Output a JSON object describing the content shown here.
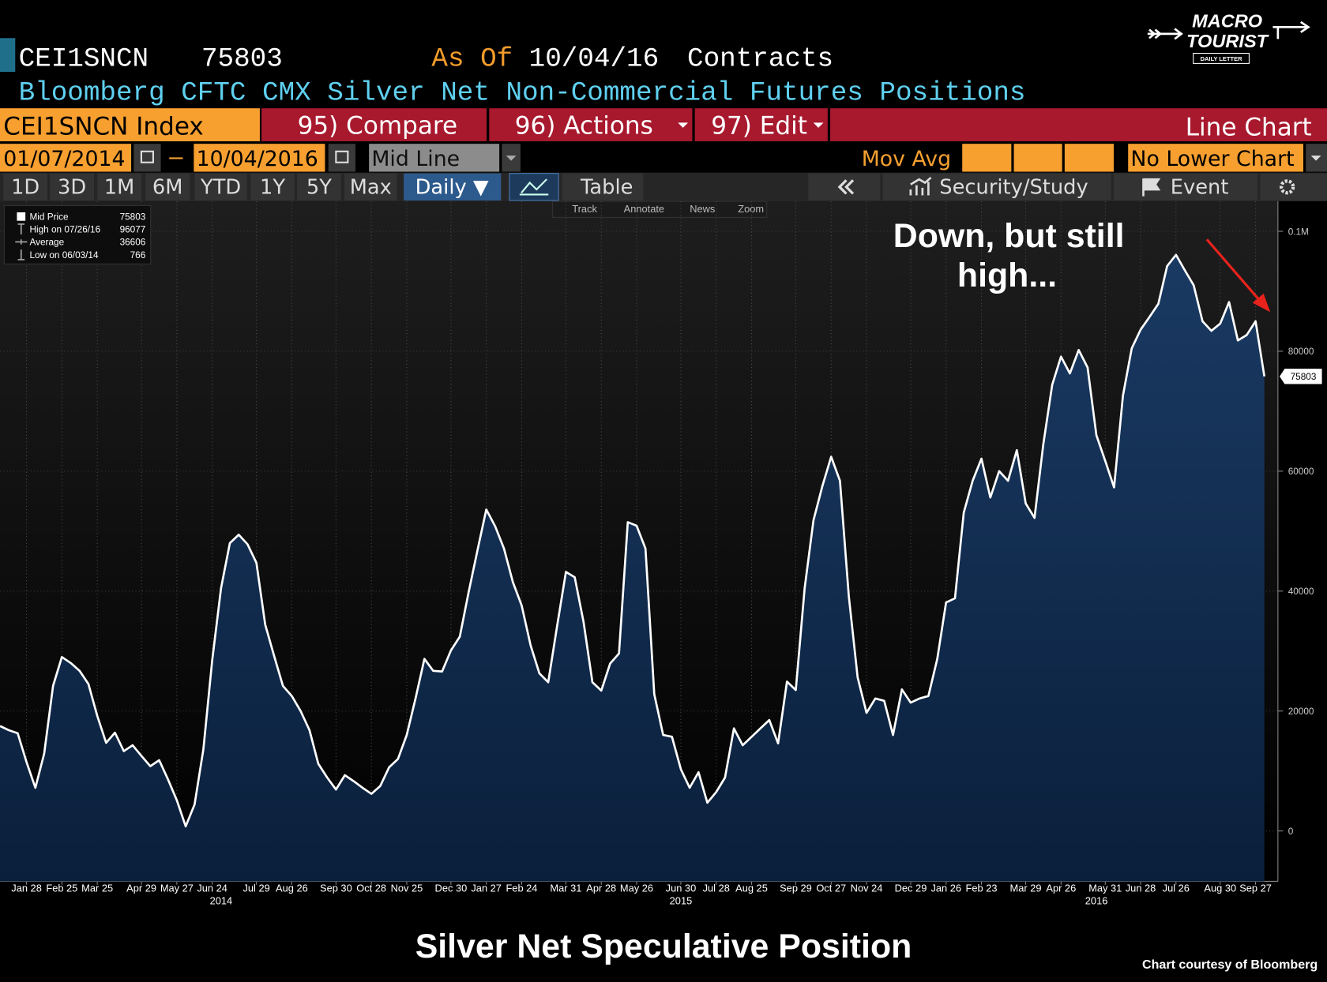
{
  "header": {
    "ticker": "CEI1SNCN",
    "value": 75803,
    "as_of_label": "As Of",
    "as_of": "10/04/16",
    "units": "Contracts",
    "description": "Bloomberg CFTC CMX Silver Net Non-Commercial Futures Positions"
  },
  "toolbar": {
    "security": "CEI1SNCN Index",
    "compare": "95) Compare",
    "actions": "96) Actions",
    "edit": "97) Edit",
    "chart_type": "Line Chart",
    "start_date": "01/07/2014",
    "end_date": "10/04/2016",
    "line_mode": "Mid Line",
    "mov_avg": "Mov Avg",
    "lower_chart": "No Lower Chart",
    "periods": [
      "1D",
      "3D",
      "1M",
      "6M",
      "YTD",
      "1Y",
      "5Y",
      "Max"
    ],
    "frequency": "Daily ▼",
    "table": "Table",
    "security_study": "Security/Study",
    "event": "Event",
    "tools": [
      "Track",
      "Annotate",
      "News",
      "Zoom"
    ]
  },
  "logo": {
    "line1": "MACRO",
    "line2": "TOURIST",
    "tagline": "DAILY LETTER"
  },
  "chart_data": {
    "type": "line",
    "title": "Silver Net Speculative Position",
    "source": "Chart courtesy of Bloomberg",
    "annotation": [
      "Down, but still",
      "high..."
    ],
    "legend_stats": [
      {
        "label": "Mid Price",
        "value": 75803
      },
      {
        "label": "High on 07/26/16",
        "value": 96077
      },
      {
        "label": "Average",
        "value": 36606
      },
      {
        "label": "Low on 06/03/14",
        "value": 766
      }
    ],
    "x": [
      "2014-01-07",
      "2014-01-14",
      "2014-01-21",
      "2014-01-28",
      "2014-02-04",
      "2014-02-11",
      "2014-02-18",
      "2014-02-25",
      "2014-03-04",
      "2014-03-11",
      "2014-03-18",
      "2014-03-25",
      "2014-04-01",
      "2014-04-08",
      "2014-04-15",
      "2014-04-22",
      "2014-04-29",
      "2014-05-06",
      "2014-05-13",
      "2014-05-20",
      "2014-05-27",
      "2014-06-03",
      "2014-06-10",
      "2014-06-17",
      "2014-06-24",
      "2014-07-01",
      "2014-07-08",
      "2014-07-15",
      "2014-07-22",
      "2014-07-29",
      "2014-08-05",
      "2014-08-12",
      "2014-08-19",
      "2014-08-26",
      "2014-09-02",
      "2014-09-09",
      "2014-09-16",
      "2014-09-23",
      "2014-09-30",
      "2014-10-07",
      "2014-10-14",
      "2014-10-21",
      "2014-10-28",
      "2014-11-04",
      "2014-11-11",
      "2014-11-18",
      "2014-11-25",
      "2014-12-02",
      "2014-12-09",
      "2014-12-16",
      "2014-12-23",
      "2014-12-30",
      "2015-01-06",
      "2015-01-13",
      "2015-01-20",
      "2015-01-27",
      "2015-02-03",
      "2015-02-10",
      "2015-02-17",
      "2015-02-24",
      "2015-03-03",
      "2015-03-10",
      "2015-03-17",
      "2015-03-24",
      "2015-03-31",
      "2015-04-07",
      "2015-04-14",
      "2015-04-21",
      "2015-04-28",
      "2015-05-05",
      "2015-05-12",
      "2015-05-19",
      "2015-05-26",
      "2015-06-02",
      "2015-06-09",
      "2015-06-16",
      "2015-06-23",
      "2015-06-30",
      "2015-07-07",
      "2015-07-14",
      "2015-07-21",
      "2015-07-28",
      "2015-08-04",
      "2015-08-11",
      "2015-08-18",
      "2015-08-25",
      "2015-09-01",
      "2015-09-08",
      "2015-09-15",
      "2015-09-22",
      "2015-09-29",
      "2015-10-06",
      "2015-10-13",
      "2015-10-20",
      "2015-10-27",
      "2015-11-03",
      "2015-11-10",
      "2015-11-17",
      "2015-11-24",
      "2015-12-01",
      "2015-12-08",
      "2015-12-15",
      "2015-12-22",
      "2015-12-29",
      "2016-01-05",
      "2016-01-12",
      "2016-01-19",
      "2016-01-26",
      "2016-02-02",
      "2016-02-09",
      "2016-02-16",
      "2016-02-23",
      "2016-03-01",
      "2016-03-08",
      "2016-03-15",
      "2016-03-22",
      "2016-03-29",
      "2016-04-05",
      "2016-04-12",
      "2016-04-19",
      "2016-04-26",
      "2016-05-03",
      "2016-05-10",
      "2016-05-17",
      "2016-05-24",
      "2016-05-31",
      "2016-06-07",
      "2016-06-14",
      "2016-06-21",
      "2016-06-28",
      "2016-07-05",
      "2016-07-12",
      "2016-07-19",
      "2016-07-26",
      "2016-08-02",
      "2016-08-09",
      "2016-08-16",
      "2016-08-23",
      "2016-08-30",
      "2016-09-06",
      "2016-09-13",
      "2016-09-20",
      "2016-09-27",
      "2016-10-04"
    ],
    "series": [
      {
        "name": "Mid Price",
        "color": "#ffffff",
        "fill": "#0f2a4d",
        "values": [
          17500,
          16800,
          16300,
          11500,
          7200,
          12900,
          24200,
          29000,
          28000,
          26700,
          24500,
          19200,
          14700,
          16400,
          13300,
          14300,
          12500,
          10800,
          11800,
          8600,
          5100,
          766,
          4400,
          13600,
          28400,
          40500,
          48000,
          49400,
          47800,
          44700,
          34400,
          29200,
          24200,
          22500,
          20000,
          16800,
          11200,
          8900,
          6900,
          9300,
          8300,
          7200,
          6200,
          7500,
          10600,
          12000,
          16000,
          22100,
          28700,
          26700,
          26600,
          30100,
          32400,
          39800,
          46800,
          53600,
          50800,
          47100,
          41500,
          37600,
          31000,
          26300,
          24800,
          34100,
          43200,
          42300,
          34800,
          24800,
          23400,
          27900,
          29600,
          51500,
          50900,
          47100,
          22800,
          16000,
          15700,
          10300,
          7200,
          9800,
          4700,
          6500,
          8900,
          17100,
          14300,
          15700,
          17100,
          18500,
          14600,
          24900,
          23500,
          40500,
          51800,
          57500,
          62400,
          58400,
          39100,
          25600,
          19700,
          22100,
          21700,
          16000,
          23600,
          21400,
          22100,
          22500,
          28700,
          38100,
          38800,
          53100,
          58400,
          62100,
          55600,
          60000,
          58400,
          63500,
          54600,
          52200,
          64500,
          74400,
          79100,
          76300,
          80200,
          77300,
          66000,
          61700,
          57300,
          72600,
          80500,
          83600,
          85700,
          87900,
          94200,
          96077,
          93500,
          91000,
          85000,
          83400,
          84600,
          88200,
          81800,
          82700,
          85000,
          75803
        ]
      }
    ],
    "xlim": [
      "2014-01-07",
      "2016-10-10"
    ],
    "xticks": [
      {
        "value": "2014-01-28",
        "label": "Jan 28"
      },
      {
        "value": "2014-02-25",
        "label": "Feb 25"
      },
      {
        "value": "2014-03-25",
        "label": "Mar 25"
      },
      {
        "value": "2014-04-29",
        "label": "Apr 29"
      },
      {
        "value": "2014-05-27",
        "label": "May 27"
      },
      {
        "value": "2014-06-24",
        "label": "Jun 24"
      },
      {
        "value": "2014-07-29",
        "label": "Jul 29"
      },
      {
        "value": "2014-08-26",
        "label": "Aug 26"
      },
      {
        "value": "2014-09-30",
        "label": "Sep 30"
      },
      {
        "value": "2014-10-28",
        "label": "Oct 28"
      },
      {
        "value": "2014-11-25",
        "label": "Nov 25"
      },
      {
        "value": "2014-12-30",
        "label": "Dec 30"
      },
      {
        "value": "2015-01-27",
        "label": "Jan 27"
      },
      {
        "value": "2015-02-24",
        "label": "Feb 24"
      },
      {
        "value": "2015-03-31",
        "label": "Mar 31"
      },
      {
        "value": "2015-04-28",
        "label": "Apr 28"
      },
      {
        "value": "2015-05-26",
        "label": "May 26"
      },
      {
        "value": "2015-06-30",
        "label": "Jun 30"
      },
      {
        "value": "2015-07-28",
        "label": "Jul 28"
      },
      {
        "value": "2015-08-25",
        "label": "Aug 25"
      },
      {
        "value": "2015-09-29",
        "label": "Sep 29"
      },
      {
        "value": "2015-10-27",
        "label": "Oct 27"
      },
      {
        "value": "2015-11-24",
        "label": "Nov 24"
      },
      {
        "value": "2015-12-29",
        "label": "Dec 29"
      },
      {
        "value": "2016-01-26",
        "label": "Jan 26"
      },
      {
        "value": "2016-02-23",
        "label": "Feb 23"
      },
      {
        "value": "2016-03-29",
        "label": "Mar 29"
      },
      {
        "value": "2016-04-26",
        "label": "Apr 26"
      },
      {
        "value": "2016-05-31",
        "label": "May 31"
      },
      {
        "value": "2016-06-28",
        "label": "Jun 28"
      },
      {
        "value": "2016-07-26",
        "label": "Jul 26"
      },
      {
        "value": "2016-08-30",
        "label": "Aug 30"
      },
      {
        "value": "2016-09-27",
        "label": "Sep 27"
      }
    ],
    "year_ticks": [
      {
        "value": "2014-07-01",
        "label": "2014"
      },
      {
        "value": "2015-06-30",
        "label": "2015"
      },
      {
        "value": "2016-05-24",
        "label": "2016"
      }
    ],
    "ylim": [
      -8400,
      105000
    ],
    "yticks": [
      0,
      20000,
      40000,
      60000,
      80000,
      {
        "value": 100000,
        "label": "0.1M"
      }
    ],
    "grid": true
  }
}
